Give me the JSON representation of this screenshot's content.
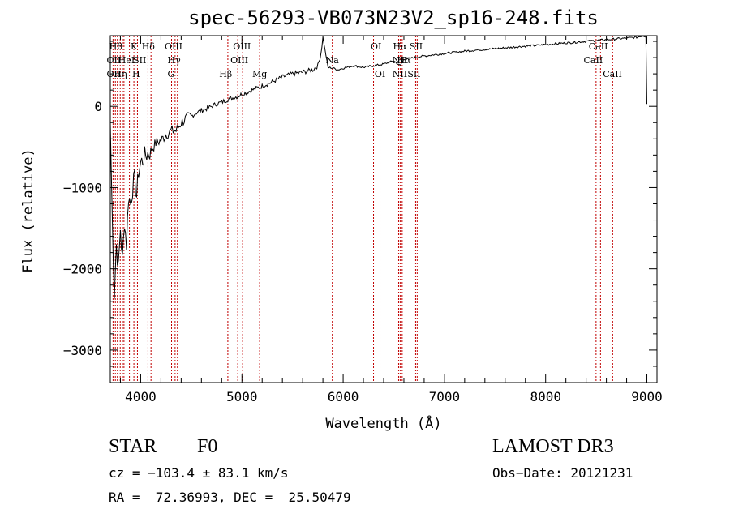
{
  "chart_data": {
    "type": "line",
    "title": "spec-56293-VB073N23V2_sp16-248.fits",
    "xlabel": "Wavelength (Å)",
    "ylabel": "Flux (relative)",
    "xlim": [
      3700,
      9100
    ],
    "ylim": [
      -3400,
      870
    ],
    "x_ticks": [
      4000,
      5000,
      6000,
      7000,
      8000,
      9000
    ],
    "y_ticks": [
      -3000,
      -2000,
      -1000,
      0
    ],
    "series": [
      {
        "name": "spectrum",
        "x": [
          3700,
          3720,
          3740,
          3760,
          3780,
          3800,
          3820,
          3840,
          3860,
          3880,
          3900,
          3920,
          3940,
          3960,
          3980,
          4000,
          4050,
          4100,
          4150,
          4200,
          4250,
          4300,
          4350,
          4400,
          4450,
          4500,
          4550,
          4600,
          4650,
          4700,
          4750,
          4800,
          4850,
          4900,
          4950,
          5000,
          5100,
          5200,
          5300,
          5400,
          5500,
          5600,
          5700,
          5750,
          5780,
          5800,
          5820,
          5850,
          5900,
          5950,
          6000,
          6100,
          6200,
          6300,
          6400,
          6500,
          6562,
          6600,
          6700,
          6800,
          7000,
          7200,
          7400,
          7600,
          7800,
          8000,
          8200,
          8400,
          8500,
          8600,
          8700,
          8800,
          8900,
          8960,
          8990,
          9000
        ],
        "y": [
          -200,
          -1400,
          -2300,
          -1700,
          -2000,
          -1500,
          -1900,
          -1400,
          -1700,
          -1100,
          -1200,
          -1000,
          -900,
          -1100,
          -800,
          -700,
          -600,
          -550,
          -450,
          -420,
          -350,
          -300,
          -300,
          -200,
          -150,
          -120,
          -80,
          -50,
          -30,
          0,
          30,
          50,
          80,
          100,
          120,
          150,
          200,
          250,
          300,
          360,
          400,
          420,
          450,
          500,
          650,
          850,
          700,
          480,
          470,
          450,
          470,
          500,
          480,
          500,
          520,
          560,
          500,
          580,
          600,
          620,
          650,
          680,
          700,
          720,
          740,
          760,
          780,
          800,
          810,
          820,
          830,
          840,
          850,
          870,
          860,
          30
        ]
      }
    ],
    "lines": [
      {
        "wl": 3727,
        "label": "OII"
      },
      {
        "wl": 3750,
        "label": "Hθ"
      },
      {
        "wl": 3770,
        "label": "OII"
      },
      {
        "wl": 3798,
        "label": "Hη"
      },
      {
        "wl": 3820,
        "label": "HeI"
      },
      {
        "wl": 3835,
        "label": "Hη"
      },
      {
        "wl": 3889,
        "label": "HeI"
      },
      {
        "wl": 3933,
        "label": "K"
      },
      {
        "wl": 3968,
        "label": "H"
      },
      {
        "wl": 4072,
        "label": "SII"
      },
      {
        "wl": 4102,
        "label": "Hδ"
      },
      {
        "wl": 4305,
        "label": "G"
      },
      {
        "wl": 4340,
        "label": "Hγ"
      },
      {
        "wl": 4363,
        "label": "OIII"
      },
      {
        "wl": 4861,
        "label": "Hβ"
      },
      {
        "wl": 4959,
        "label": "OIII"
      },
      {
        "wl": 5007,
        "label": "OIII"
      },
      {
        "wl": 5175,
        "label": "Mg"
      },
      {
        "wl": 5893,
        "label": "Na"
      },
      {
        "wl": 6300,
        "label": "OI"
      },
      {
        "wl": 6364,
        "label": "OI"
      },
      {
        "wl": 6548,
        "label": "NII"
      },
      {
        "wl": 6563,
        "label": "Hα"
      },
      {
        "wl": 6583,
        "label": "NII"
      },
      {
        "wl": 6716,
        "label": "SII"
      },
      {
        "wl": 6731,
        "label": "SII"
      },
      {
        "wl": 8498,
        "label": "CaII"
      },
      {
        "wl": 8542,
        "label": "CaII"
      },
      {
        "wl": 8662,
        "label": "CaII"
      }
    ],
    "line_labels": [
      {
        "text": "Hθ",
        "wl": 3755,
        "row": 1
      },
      {
        "text": "K",
        "wl": 3933,
        "row": 1
      },
      {
        "text": "Hδ",
        "wl": 4075,
        "row": 1
      },
      {
        "text": "OIII",
        "wl": 4325,
        "row": 1
      },
      {
        "text": "OIII",
        "wl": 5000,
        "row": 1
      },
      {
        "text": "OI",
        "wl": 6325,
        "row": 1
      },
      {
        "text": "Hα",
        "wl": 6560,
        "row": 1
      },
      {
        "text": "SII",
        "wl": 6720,
        "row": 1
      },
      {
        "text": "CaII",
        "wl": 8520,
        "row": 1
      },
      {
        "text": "OII",
        "wl": 3735,
        "row": 2
      },
      {
        "text": "HeI",
        "wl": 3860,
        "row": 2
      },
      {
        "text": "SII",
        "wl": 3990,
        "row": 2
      },
      {
        "text": "Hγ",
        "wl": 4330,
        "row": 2
      },
      {
        "text": "OIII",
        "wl": 4975,
        "row": 2
      },
      {
        "text": "Na",
        "wl": 5893,
        "row": 2
      },
      {
        "text": "NII",
        "wl": 6560,
        "row": 2
      },
      {
        "text": "Hα",
        "wl": 6600,
        "row": 2
      },
      {
        "text": "CaII",
        "wl": 8470,
        "row": 2
      },
      {
        "text": "OII",
        "wl": 3735,
        "row": 3
      },
      {
        "text": "Hη",
        "wl": 3800,
        "row": 3
      },
      {
        "text": "H",
        "wl": 3955,
        "row": 3
      },
      {
        "text": "G",
        "wl": 4300,
        "row": 3
      },
      {
        "text": "Hβ",
        "wl": 4840,
        "row": 3
      },
      {
        "text": "Mg",
        "wl": 5175,
        "row": 3
      },
      {
        "text": "OI",
        "wl": 6364,
        "row": 3
      },
      {
        "text": "NII",
        "wl": 6560,
        "row": 3
      },
      {
        "text": "SII",
        "wl": 6700,
        "row": 3
      },
      {
        "text": "CaII",
        "wl": 8660,
        "row": 3
      }
    ]
  },
  "info": {
    "class": "STAR",
    "subclass": "F0",
    "survey": "LAMOST DR3",
    "cz": "cz = −103.4 ± 83.1 km/s",
    "obs_date": "Obs−Date: 20121231",
    "coords": "RA =  72.36993, DEC =  25.50479"
  },
  "colors": {
    "line_marker": "#c00000",
    "spectrum": "#000000"
  }
}
